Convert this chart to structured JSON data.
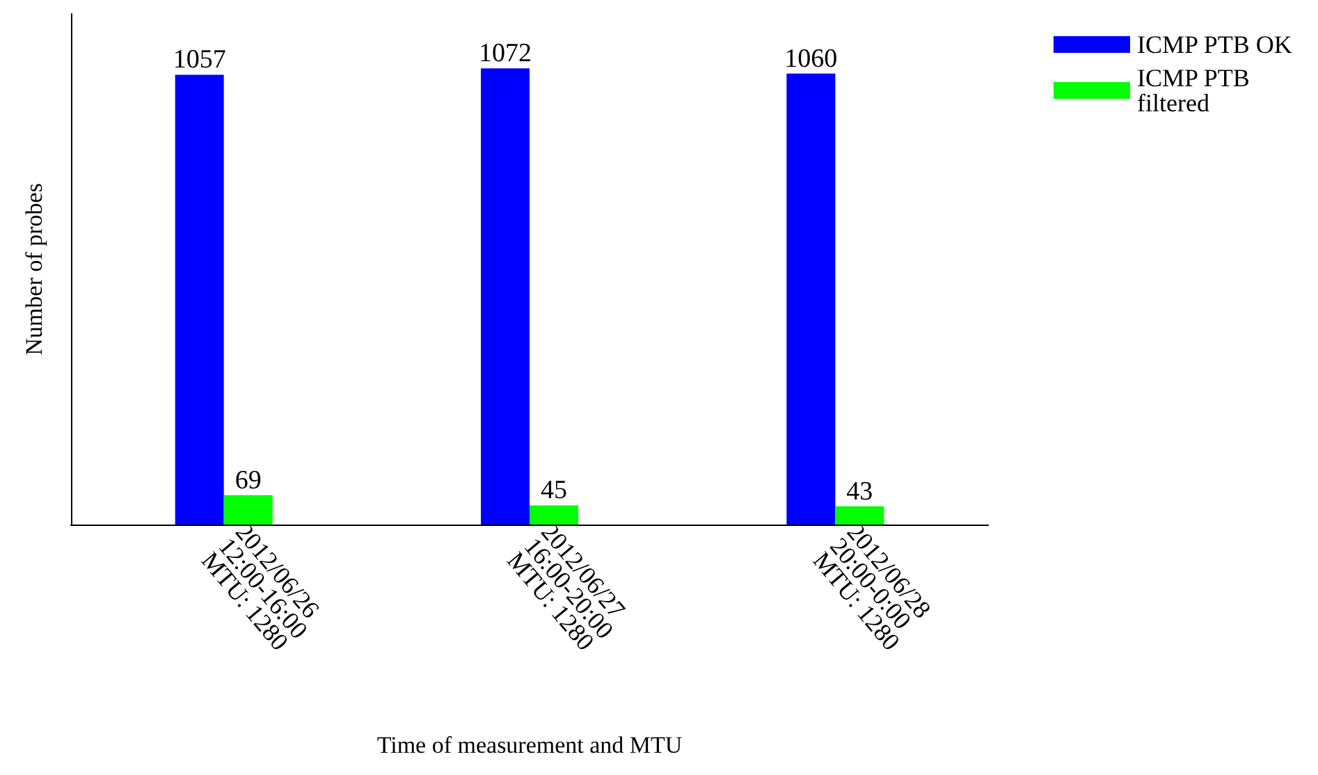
{
  "chart_data": {
    "type": "bar",
    "xlabel": "Time of measurement and MTU",
    "ylabel": "Number of probes",
    "categories": [
      "2012/06/26\n12:00-16:00\nMTU: 1280",
      "2012/06/27\n16:00-20:00\nMTU: 1280",
      "2012/06/28\n20:00-0:00\nMTU: 1280"
    ],
    "series": [
      {
        "name": "ICMP PTB OK",
        "color": "#0000ff",
        "values": [
          1057,
          1072,
          1060
        ]
      },
      {
        "name": "ICMP PTB filtered",
        "color": "#00ff00",
        "values": [
          69,
          45,
          43
        ]
      }
    ],
    "data_labels": true,
    "legend": "top right",
    "grid": false,
    "tick_labels": "x"
  }
}
